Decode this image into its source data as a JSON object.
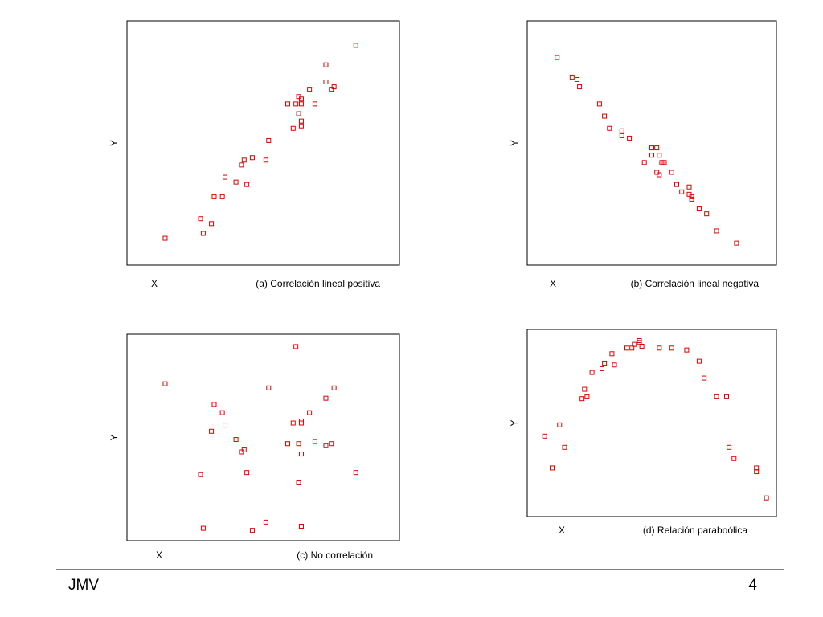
{
  "chart_data": [
    {
      "type": "scatter",
      "title": "(a) Correlación lineal positiva",
      "x_label": "X",
      "y_label": "Y",
      "color": "#e00000",
      "xlim": [
        0,
        100
      ],
      "ylim": [
        0,
        100
      ],
      "x": [
        14,
        27,
        28,
        31,
        32,
        35,
        36,
        40,
        42,
        43,
        44,
        46,
        51,
        52,
        59,
        61,
        62,
        63,
        63,
        64,
        64,
        64,
        64,
        67,
        69,
        73,
        73,
        75,
        76,
        84
      ],
      "y": [
        11,
        19,
        13,
        17,
        28,
        28,
        36,
        34,
        41,
        43,
        33,
        44,
        43,
        51,
        66,
        56,
        66,
        69,
        62,
        66,
        68,
        59,
        57,
        72,
        66,
        75,
        82,
        72,
        73,
        90
      ]
    },
    {
      "type": "scatter",
      "title": "(b) Correlación lineal negativa",
      "x_label": "X",
      "y_label": "Y",
      "color": "#e00000",
      "xlim": [
        0,
        100
      ],
      "ylim": [
        0,
        100
      ],
      "x": [
        12,
        18,
        20,
        21,
        29,
        31,
        33,
        38,
        38,
        41,
        47,
        50,
        50,
        52,
        52,
        53,
        53,
        54,
        55,
        58,
        60,
        62,
        65,
        65,
        66,
        66,
        69,
        72,
        76,
        84
      ],
      "y": [
        85,
        77,
        76,
        73,
        66,
        61,
        56,
        53,
        55,
        52,
        42,
        48,
        45,
        48,
        38,
        45,
        37,
        42,
        42,
        38,
        33,
        30,
        29,
        32,
        27,
        28,
        23,
        21,
        14,
        9
      ]
    },
    {
      "type": "scatter",
      "title": "(c) No correlación",
      "x_label": "X",
      "y_label": "Y",
      "color": "#e00000",
      "xlim": [
        0,
        100
      ],
      "ylim": [
        0,
        100
      ],
      "x": [
        14,
        27,
        28,
        31,
        32,
        35,
        36,
        40,
        42,
        43,
        44,
        46,
        51,
        52,
        59,
        61,
        62,
        63,
        63,
        64,
        64,
        64,
        64,
        67,
        69,
        73,
        73,
        75,
        76,
        84
      ],
      "y": [
        76,
        32,
        6,
        53,
        66,
        62,
        56,
        49,
        43,
        44,
        33,
        5,
        9,
        74,
        47,
        57,
        94,
        47,
        28,
        58,
        57,
        42,
        7,
        62,
        48,
        69,
        46,
        47,
        74,
        33
      ]
    },
    {
      "type": "scatter",
      "title": "(d) Relación paraboólica",
      "x_label": "X",
      "y_label": "Y",
      "color": "#e00000",
      "xlim": [
        0,
        100
      ],
      "ylim": [
        0,
        100
      ],
      "x": [
        7,
        10,
        13,
        15,
        22,
        23,
        24,
        26,
        30,
        31,
        34,
        35,
        40,
        42,
        43,
        45,
        45,
        46,
        53,
        58,
        64,
        69,
        71,
        76,
        80,
        81,
        83,
        92,
        92,
        96
      ],
      "y": [
        43,
        26,
        49,
        37,
        63,
        68,
        64,
        77,
        79,
        82,
        87,
        81,
        90,
        90,
        92,
        93,
        94,
        91,
        90,
        90,
        89,
        83,
        74,
        64,
        64,
        37,
        31,
        24,
        26,
        10
      ]
    }
  ],
  "footer": {
    "author": "JMV",
    "page": 4
  }
}
